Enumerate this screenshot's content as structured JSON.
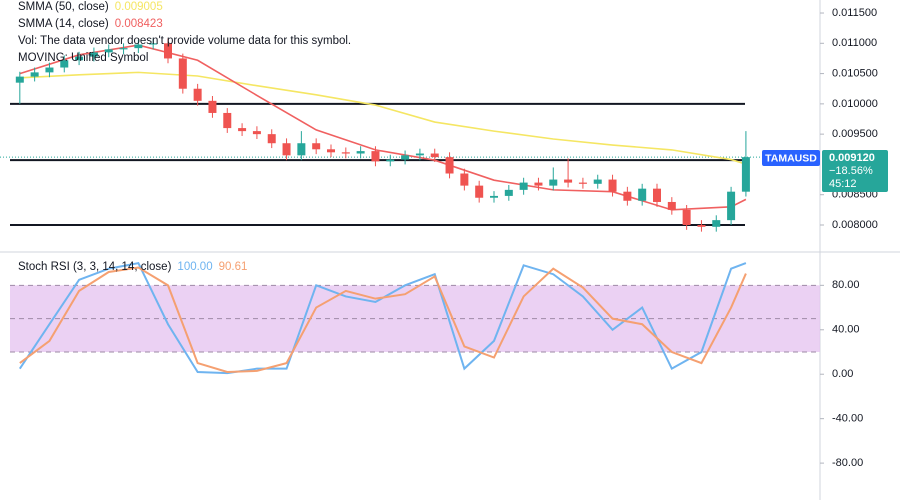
{
  "chart_data": [
    {
      "type": "candlestick",
      "symbol": "TAMAUSD",
      "last_price": {
        "value": 0.00912,
        "label": "0.009120"
      },
      "change": {
        "value": -18.56,
        "label": "−18.56%"
      },
      "countdown": "45:12",
      "notes": [
        "Vol: The data vendor doesn't provide volume data for this symbol.",
        "MOVING: Unified Symbol"
      ],
      "xlim": [
        -1,
        54
      ],
      "ylim": [
        0.007554,
        0.011715
      ],
      "yticks": [
        {
          "value": 0.0115,
          "label": "0.011500"
        },
        {
          "value": 0.011,
          "label": "0.011000"
        },
        {
          "value": 0.0105,
          "label": "0.010500"
        },
        {
          "value": 0.01,
          "label": "0.010000"
        },
        {
          "value": 0.0095,
          "label": "0.009500"
        },
        {
          "value": 0.0085,
          "label": "0.008500"
        },
        {
          "value": 0.008,
          "label": "0.008000"
        }
      ],
      "up_color": "#26a69a",
      "down_color": "#ef5350",
      "levels": [
        0.01,
        0.00907,
        0.008
      ],
      "candles": {
        "open": [
          0.01035,
          0.01045,
          0.01052,
          0.0106,
          0.01072,
          0.01078,
          0.01085,
          0.0109,
          0.01092,
          0.01098,
          0.011,
          0.01075,
          0.01025,
          0.01005,
          0.00985,
          0.0096,
          0.00955,
          0.0095,
          0.00935,
          0.00915,
          0.00935,
          0.00925,
          0.0092,
          0.00918,
          0.00922,
          0.00905,
          0.00908,
          0.00915,
          0.00918,
          0.00912,
          0.00885,
          0.00865,
          0.00845,
          0.00848,
          0.00858,
          0.0087,
          0.00865,
          0.00875,
          0.0087,
          0.00868,
          0.00875,
          0.00855,
          0.0084,
          0.0086,
          0.00838,
          0.00825,
          0.008,
          0.00797,
          0.00808,
          0.00855
        ],
        "high": [
          0.01053,
          0.0106,
          0.01068,
          0.0108,
          0.01086,
          0.01093,
          0.01098,
          0.011,
          0.01106,
          0.01108,
          0.01108,
          0.01083,
          0.01033,
          0.01013,
          0.00993,
          0.00968,
          0.00963,
          0.00958,
          0.00943,
          0.00955,
          0.00943,
          0.00933,
          0.00928,
          0.0093,
          0.0093,
          0.00916,
          0.00923,
          0.00926,
          0.00926,
          0.0092,
          0.00893,
          0.00873,
          0.00856,
          0.00866,
          0.00878,
          0.00878,
          0.00895,
          0.0091,
          0.00878,
          0.00883,
          0.00883,
          0.00863,
          0.00868,
          0.00868,
          0.00846,
          0.00833,
          0.00808,
          0.00816,
          0.00863,
          0.00955
        ],
        "low": [
          0.01,
          0.01037,
          0.01044,
          0.01052,
          0.01064,
          0.0107,
          0.01077,
          0.01082,
          0.01084,
          0.0109,
          0.01067,
          0.01017,
          0.00997,
          0.00977,
          0.00952,
          0.00947,
          0.00942,
          0.00927,
          0.00907,
          0.00907,
          0.00917,
          0.00912,
          0.0091,
          0.0091,
          0.00897,
          0.00897,
          0.009,
          0.00907,
          0.00904,
          0.00877,
          0.00857,
          0.00837,
          0.00837,
          0.0084,
          0.0085,
          0.00857,
          0.00857,
          0.00862,
          0.0086,
          0.0086,
          0.00847,
          0.00832,
          0.00832,
          0.0083,
          0.00817,
          0.00792,
          0.00789,
          0.00789,
          0.008,
          0.00847
        ],
        "close": [
          0.01045,
          0.01052,
          0.0106,
          0.01072,
          0.01078,
          0.01085,
          0.0109,
          0.01092,
          0.01098,
          0.011,
          0.01075,
          0.01025,
          0.01005,
          0.00985,
          0.0096,
          0.00955,
          0.0095,
          0.00935,
          0.00915,
          0.00935,
          0.00925,
          0.0092,
          0.00918,
          0.00922,
          0.00905,
          0.00908,
          0.00915,
          0.00918,
          0.00912,
          0.00885,
          0.00865,
          0.00845,
          0.00848,
          0.00858,
          0.0087,
          0.00865,
          0.00875,
          0.0087,
          0.00868,
          0.00875,
          0.00855,
          0.0084,
          0.0086,
          0.00838,
          0.00825,
          0.008,
          0.00797,
          0.00808,
          0.00855,
          0.00912
        ]
      },
      "series": [
        {
          "name": "SMMA (50, close)",
          "color": "#f5e663",
          "x": [
            0,
            4,
            8,
            12,
            16,
            20,
            24,
            28,
            32,
            36,
            40,
            44,
            48,
            49
          ],
          "values": [
            0.01043,
            0.01048,
            0.01052,
            0.01046,
            0.0103,
            0.01015,
            0.00998,
            0.0097,
            0.00955,
            0.00942,
            0.00932,
            0.00924,
            0.00908,
            0.009005
          ]
        },
        {
          "name": "SMMA (14, close)",
          "color": "#f06060",
          "x": [
            0,
            4,
            8,
            12,
            16,
            20,
            24,
            28,
            32,
            36,
            40,
            44,
            48,
            49
          ],
          "values": [
            0.0105,
            0.01081,
            0.01097,
            0.01072,
            0.01014,
            0.00957,
            0.00924,
            0.00907,
            0.00874,
            0.00858,
            0.00855,
            0.00825,
            0.0083,
            0.008423
          ]
        }
      ]
    },
    {
      "type": "line",
      "title": "Stoch RSI (3, 3, 14, 14, close)",
      "xlim": [
        -1,
        54
      ],
      "ylim": [
        -106,
        110
      ],
      "yticks": [
        {
          "value": 80,
          "label": "80.00"
        },
        {
          "value": 40,
          "label": "40.00"
        },
        {
          "value": 0,
          "label": "0.00"
        },
        {
          "value": -40,
          "label": "-40.00"
        },
        {
          "value": -80,
          "label": "-80.00"
        }
      ],
      "band": [
        20,
        80
      ],
      "band_color": "#e6c6f0",
      "dashed_levels": [
        80,
        50,
        20
      ],
      "series": [
        {
          "name": "K",
          "color": "#6fb4f0",
          "legend_value": {
            "value": 100,
            "label": "100.00"
          },
          "x": [
            0,
            2,
            4,
            6,
            8,
            10,
            12,
            14,
            16,
            18,
            20,
            22,
            24,
            26,
            28,
            30,
            32,
            34,
            36,
            38,
            40,
            42,
            44,
            46,
            48,
            49
          ],
          "values": [
            5,
            45,
            85,
            95,
            100,
            45,
            2,
            1,
            5,
            5,
            80,
            70,
            65,
            80,
            90,
            5,
            30,
            98,
            90,
            70,
            40,
            60,
            5,
            20,
            95,
            100
          ]
        },
        {
          "name": "D",
          "color": "#f5a071",
          "x": [
            0,
            2,
            4,
            6,
            8,
            10,
            12,
            14,
            16,
            18,
            20,
            22,
            24,
            26,
            28,
            30,
            32,
            34,
            36,
            38,
            40,
            42,
            44,
            46,
            48,
            49
          ],
          "values": [
            10,
            30,
            75,
            92,
            96,
            80,
            10,
            2,
            3,
            10,
            60,
            75,
            68,
            72,
            88,
            25,
            15,
            70,
            95,
            78,
            50,
            45,
            20,
            10,
            60,
            90.61
          ]
        }
      ]
    }
  ]
}
